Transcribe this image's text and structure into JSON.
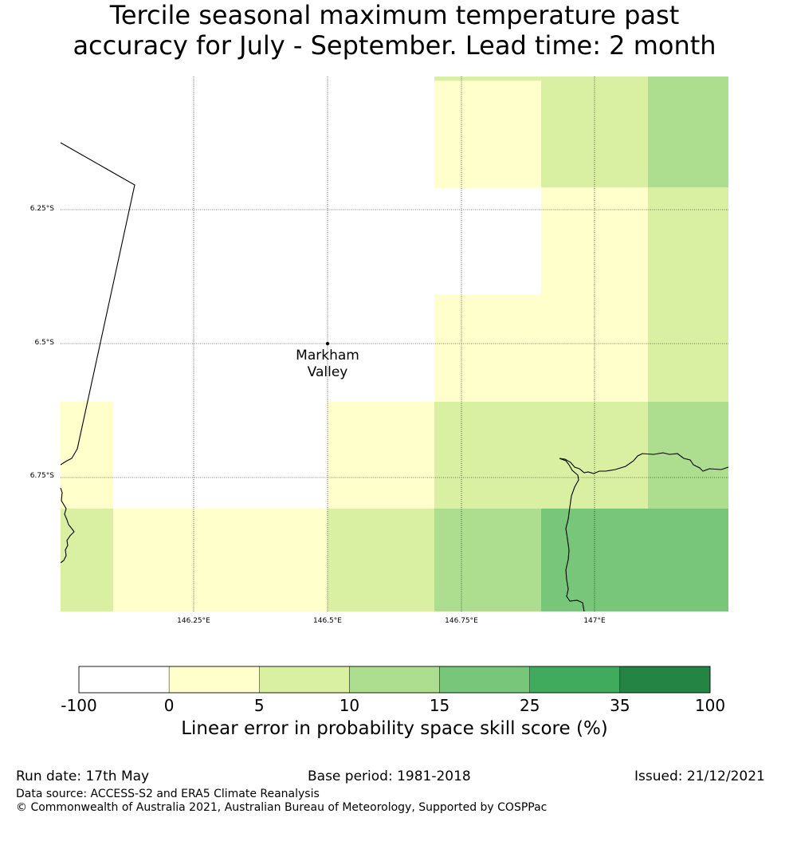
{
  "title": {
    "line1": "Tercile seasonal maximum temperature past",
    "line2": "accuracy for July - September. Lead time: 2 month"
  },
  "map": {
    "lat_ticks": [
      "6.25°S",
      "6.5°S",
      "6.75°S"
    ],
    "lon_ticks": [
      "146.25°E",
      "146.5°E",
      "146.75°E",
      "147°E"
    ],
    "place": {
      "name_line1": "Markham",
      "name_line2": "Valley"
    },
    "category_colors": [
      "#ffffff",
      "#ffffcc",
      "#d9f0a3",
      "#addd8e",
      "#78c679",
      "#41ab5d",
      "#238443"
    ]
  },
  "colorbar": {
    "ticks": [
      "-100",
      "0",
      "5",
      "10",
      "15",
      "25",
      "35",
      "100"
    ],
    "label": "Linear error in probability space skill score (%)"
  },
  "footer": {
    "run_date": "Run date: 17th May",
    "base_period": "Base period: 1981-2018",
    "issued": "Issued: 21/12/2021",
    "data_source": "Data source: ACCESS-S2 and ERA5 Climate Reanalysis",
    "copyright": "© Commonwealth of Australia 2021, Australian Bureau of Meteorology, Supported by COSPPac"
  }
}
